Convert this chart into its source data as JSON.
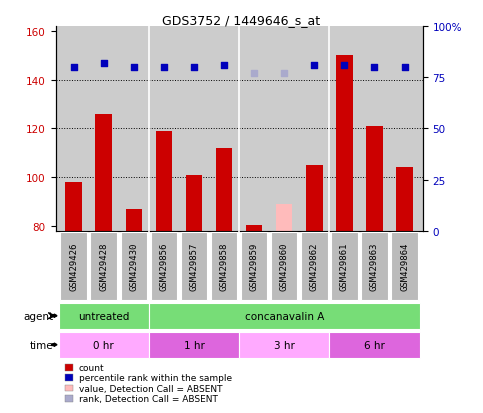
{
  "title": "GDS3752 / 1449646_s_at",
  "samples": [
    "GSM429426",
    "GSM429428",
    "GSM429430",
    "GSM429856",
    "GSM429857",
    "GSM429858",
    "GSM429859",
    "GSM429860",
    "GSM429862",
    "GSM429861",
    "GSM429863",
    "GSM429864"
  ],
  "count_values": [
    98,
    126,
    87,
    119,
    101,
    112,
    80.5,
    null,
    105,
    150,
    121,
    104
  ],
  "absent_count_values": [
    null,
    null,
    null,
    null,
    null,
    null,
    null,
    89,
    null,
    null,
    null,
    null
  ],
  "rank_values": [
    80,
    82,
    80,
    80,
    80,
    81,
    null,
    null,
    81,
    81,
    80,
    80
  ],
  "absent_rank_values": [
    null,
    null,
    null,
    null,
    null,
    null,
    77,
    77,
    null,
    null,
    null,
    null
  ],
  "ylim_left": [
    78,
    162
  ],
  "ylim_right": [
    0,
    100
  ],
  "yticks_left": [
    80,
    100,
    120,
    140,
    160
  ],
  "yticks_right": [
    0,
    25,
    50,
    75,
    100
  ],
  "bar_width": 0.55,
  "count_color": "#cc0000",
  "absent_count_color": "#ffbbbb",
  "rank_color": "#0000bb",
  "absent_rank_color": "#aaaacc",
  "plot_bg_color": "#cccccc",
  "sample_box_color": "#bbbbbb",
  "background_color": "#ffffff",
  "green_color": "#77dd77",
  "time_color_light": "#ffaaff",
  "time_color_dark": "#dd66dd",
  "label_fontsize": 7.5,
  "tick_fontsize": 7.5,
  "sample_fontsize": 6.5
}
